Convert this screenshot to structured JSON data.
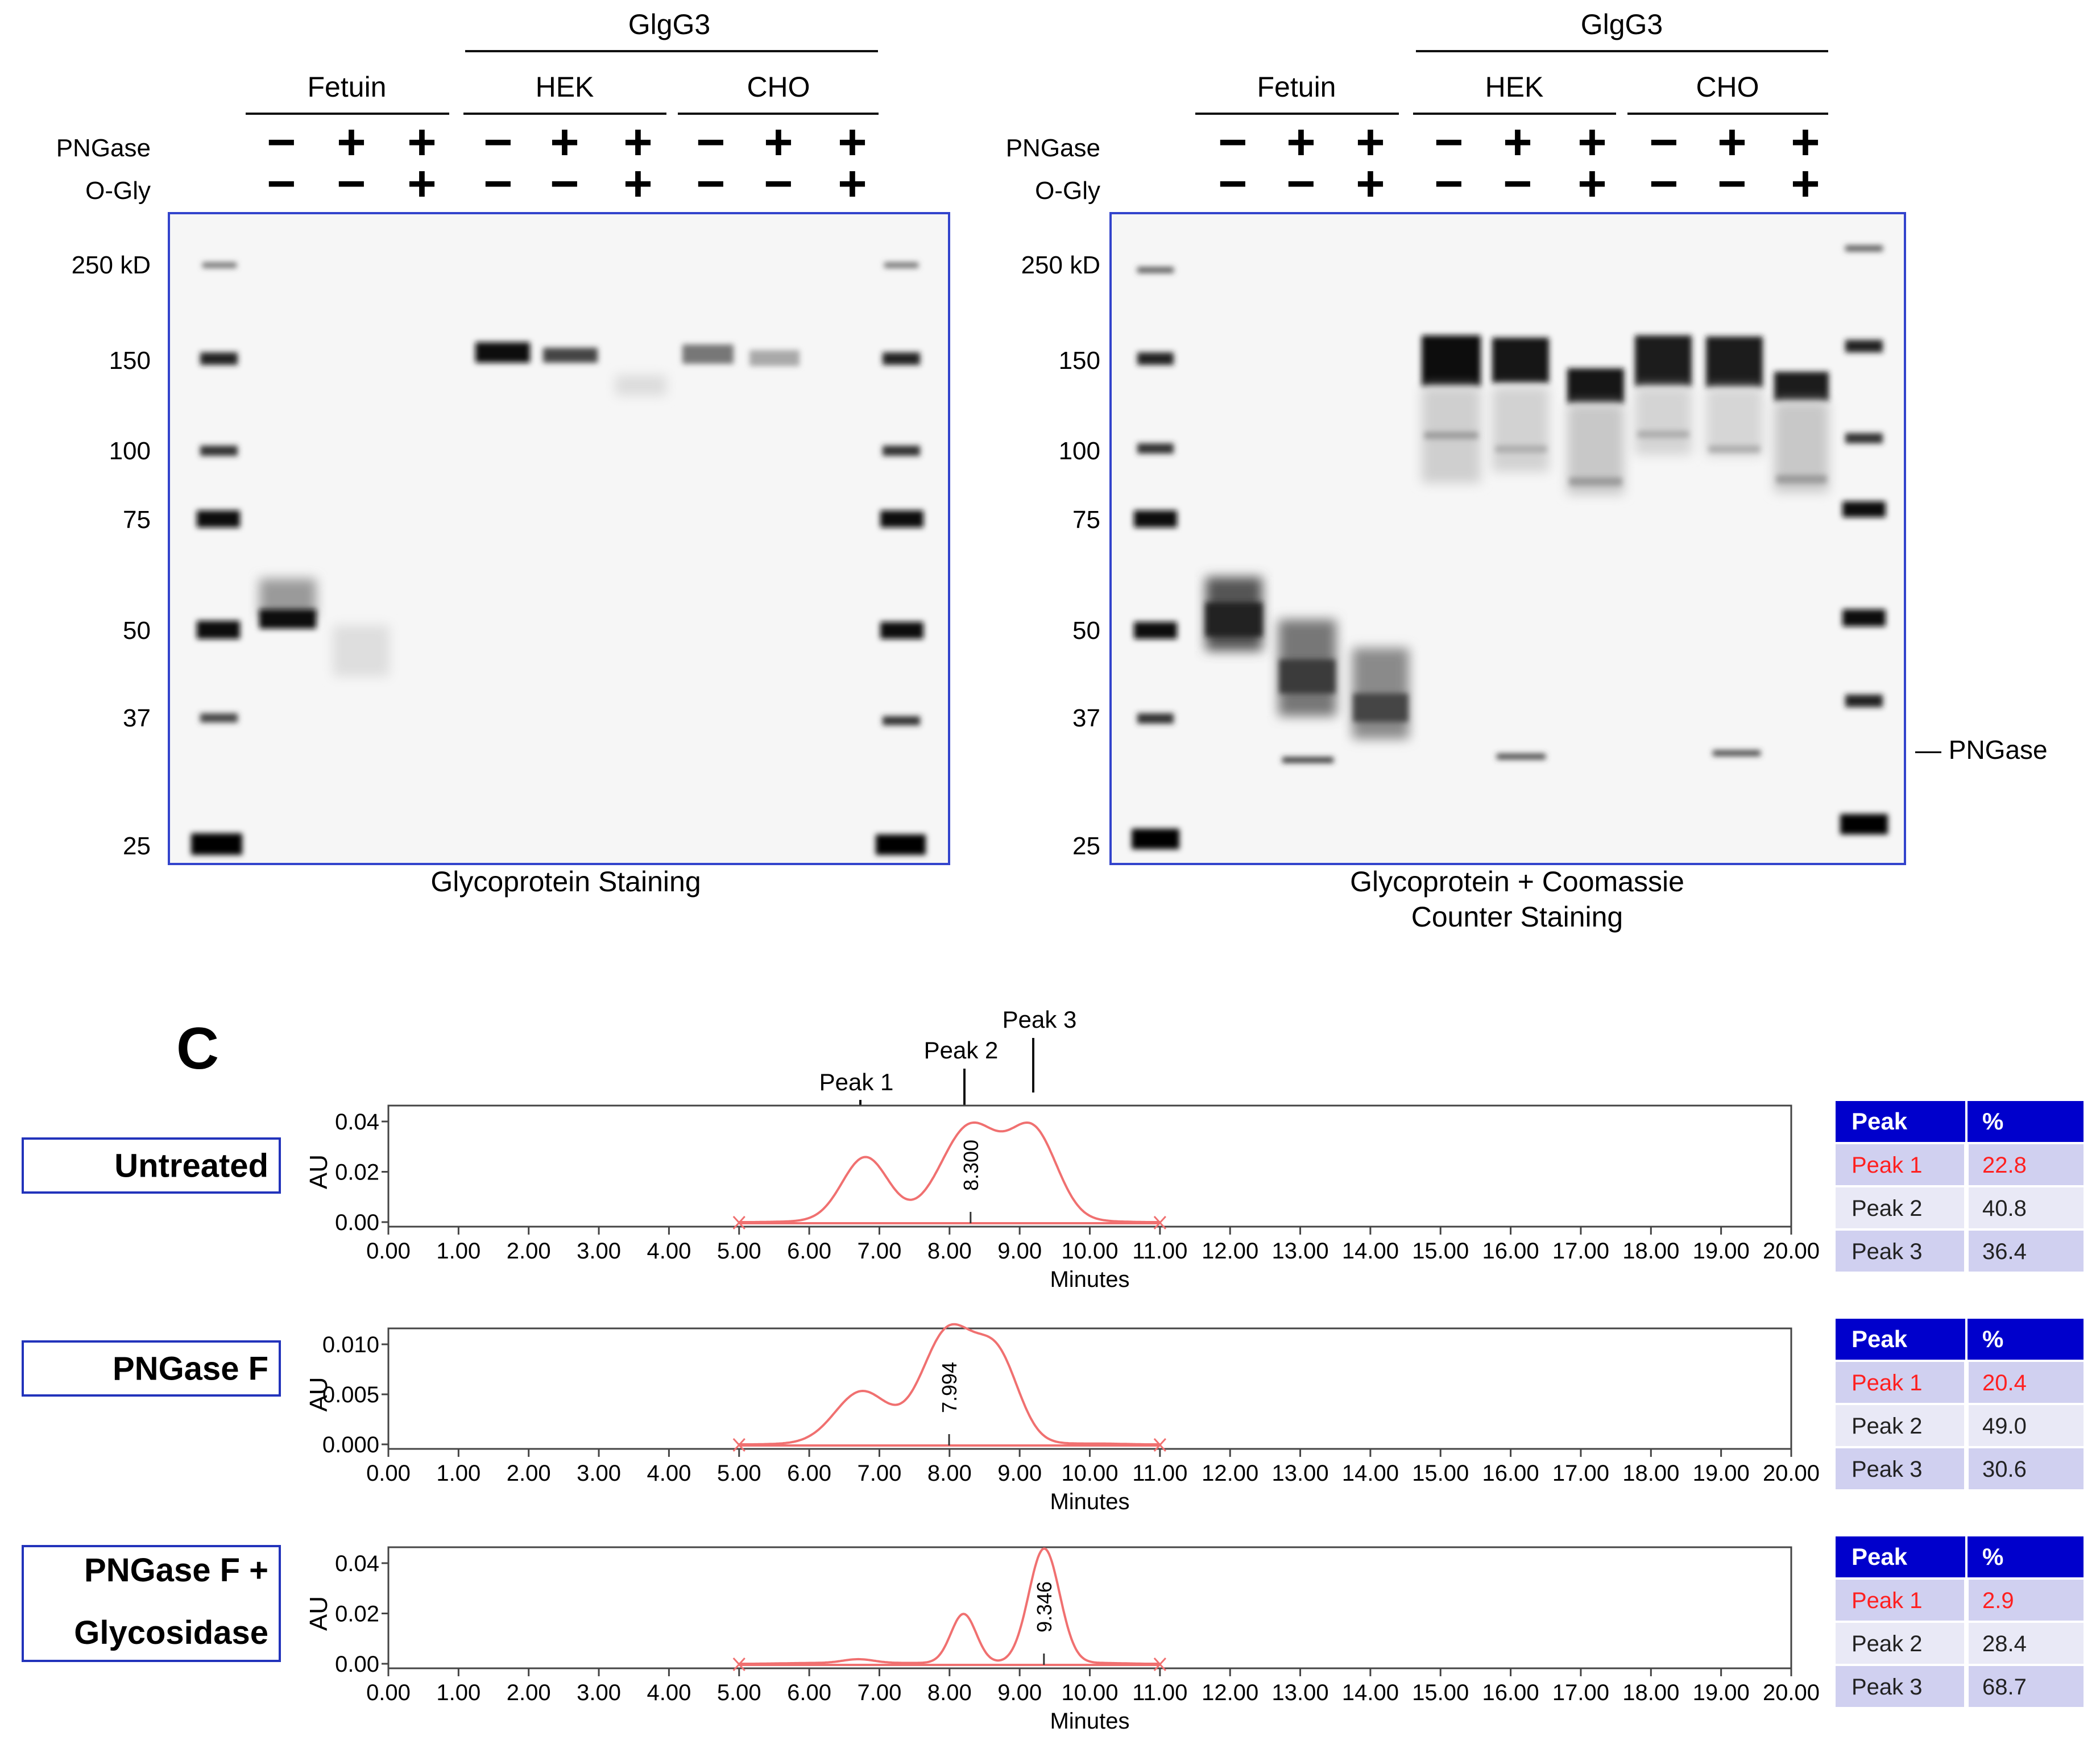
{
  "gels": [
    {
      "id": "left",
      "caption": [
        "Glycoprotein  Staining"
      ],
      "group_label": "GlgG3",
      "sample_labels": [
        "Fetuin",
        "HEK",
        "CHO"
      ],
      "row_labels": [
        "PNGase",
        "O-Gly"
      ],
      "pngase": [
        "−",
        "+",
        "+",
        "−",
        "+",
        "+",
        "−",
        "+",
        "+"
      ],
      "ogly": [
        "−",
        "−",
        "+",
        "−",
        "−",
        "+",
        "−",
        "−",
        "+"
      ],
      "markers": [
        "250 kD",
        "150",
        "100",
        "75",
        "50",
        "37",
        "25"
      ],
      "side_label": ""
    },
    {
      "id": "right",
      "caption": [
        "Glycoprotein + Coomassie",
        "Counter Staining"
      ],
      "group_label": "GlgG3",
      "sample_labels": [
        "Fetuin",
        "HEK",
        "CHO"
      ],
      "row_labels": [
        "PNGase",
        "O-Gly"
      ],
      "pngase": [
        "−",
        "+",
        "+",
        "−",
        "+",
        "+",
        "−",
        "+",
        "+"
      ],
      "ogly": [
        "−",
        "−",
        "+",
        "−",
        "−",
        "+",
        "−",
        "−",
        "+"
      ],
      "markers": [
        "250 kD",
        "150",
        "100",
        "75",
        "50",
        "37",
        "25"
      ],
      "side_label": "— PNGase"
    }
  ],
  "panel_c": {
    "label": "C",
    "peak_labels": [
      "Peak 1",
      "Peak 2",
      "Peak 3"
    ],
    "x_axis_label": "Minutes",
    "y_axis_label": "AU",
    "x_ticks": [
      "0.00",
      "1.00",
      "2.00",
      "3.00",
      "4.00",
      "5.00",
      "6.00",
      "7.00",
      "8.00",
      "9.00",
      "10.00",
      "11.00",
      "12.00",
      "13.00",
      "14.00",
      "15.00",
      "16.00",
      "17.00",
      "18.00",
      "19.00",
      "20.00"
    ],
    "curve_color": "#f07070",
    "table_header_color": "#0000cc",
    "highlight_color": "#ff2020"
  },
  "chart_data": [
    {
      "type": "line",
      "title": "Untreated",
      "xlabel": "Minutes",
      "ylabel": "AU",
      "xlim": [
        0,
        20
      ],
      "ylim": [
        0,
        0.04
      ],
      "y_ticks": [
        "0.00",
        "0.02",
        "0.04"
      ],
      "apex_label": "8.300",
      "apex_x": 8.3,
      "peaks": [
        {
          "center": 6.8,
          "height": 0.0255,
          "width": 0.33
        },
        {
          "center": 8.3,
          "height": 0.038,
          "width": 0.42
        },
        {
          "center": 9.2,
          "height": 0.0345,
          "width": 0.34
        }
      ],
      "table": {
        "headers": [
          "Peak",
          "%"
        ],
        "rows": [
          [
            "Peak 1",
            "22.8"
          ],
          [
            "Peak 2",
            "40.8"
          ],
          [
            "Peak 3",
            "36.4"
          ]
        ]
      }
    },
    {
      "type": "line",
      "title": "PNGase  F",
      "xlabel": "Minutes",
      "ylabel": "AU",
      "xlim": [
        0,
        20
      ],
      "ylim": [
        0,
        0.01
      ],
      "y_ticks": [
        "0.000",
        "0.005",
        "0.010"
      ],
      "apex_label": "7.994",
      "apex_x": 7.994,
      "peaks": [
        {
          "center": 6.75,
          "height": 0.0052,
          "width": 0.38
        },
        {
          "center": 7.99,
          "height": 0.0113,
          "width": 0.38
        },
        {
          "center": 8.7,
          "height": 0.0078,
          "width": 0.3
        }
      ],
      "table": {
        "headers": [
          "Peak",
          "%"
        ],
        "rows": [
          [
            "Peak 1",
            "20.4"
          ],
          [
            "Peak 2",
            "49.0"
          ],
          [
            "Peak 3",
            "30.6"
          ]
        ]
      }
    },
    {
      "type": "line",
      "title": "PNGase F + Glycosidase",
      "title_lines": [
        "PNGase F +",
        "Glycosidase"
      ],
      "xlabel": "Minutes",
      "ylabel": "AU",
      "xlim": [
        0,
        20
      ],
      "ylim": [
        0,
        0.04
      ],
      "y_ticks": [
        "0.00",
        "0.02",
        "0.04"
      ],
      "apex_label": "9.346",
      "apex_x": 9.346,
      "peaks": [
        {
          "center": 6.7,
          "height": 0.0015,
          "width": 0.22
        },
        {
          "center": 8.2,
          "height": 0.0195,
          "width": 0.18
        },
        {
          "center": 9.35,
          "height": 0.0455,
          "width": 0.22
        }
      ],
      "table": {
        "headers": [
          "Peak",
          "%"
        ],
        "rows": [
          [
            "Peak 1",
            "2.9"
          ],
          [
            "Peak 2",
            "28.4"
          ],
          [
            "Peak 3",
            "68.7"
          ]
        ]
      }
    }
  ]
}
